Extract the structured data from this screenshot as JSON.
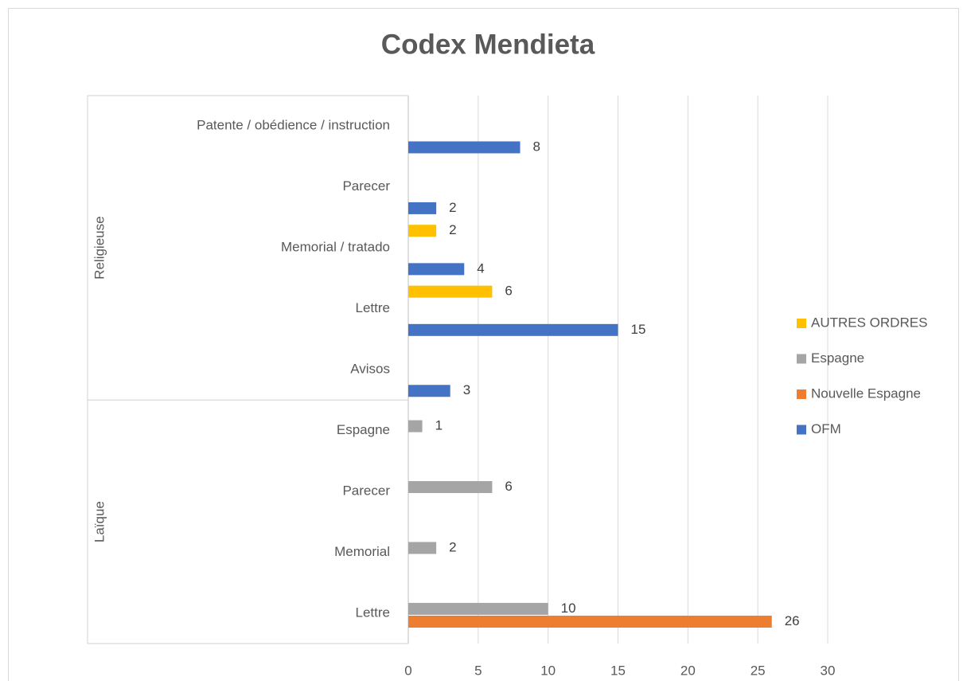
{
  "chart_data": {
    "type": "bar",
    "orientation": "horizontal",
    "title": "Codex Mendieta",
    "groups": [
      {
        "name": "Religieuse",
        "categories": [
          "Patente / obédience / instruction",
          "Parecer",
          "Memorial / tratado",
          "Lettre",
          "Avisos"
        ]
      },
      {
        "name": "Laïque",
        "categories": [
          "Espagne",
          "Parecer",
          "Memorial",
          "Lettre"
        ]
      }
    ],
    "series": [
      {
        "name": "AUTRES ORDRES",
        "color": "#ffc000",
        "values": [
          null,
          null,
          2,
          6,
          null,
          null,
          null,
          null,
          null
        ]
      },
      {
        "name": "Espagne",
        "color": "#a5a5a5",
        "values": [
          null,
          null,
          null,
          null,
          null,
          1,
          6,
          2,
          10
        ]
      },
      {
        "name": "Nouvelle Espagne",
        "color": "#ed7d31",
        "values": [
          null,
          null,
          null,
          null,
          null,
          null,
          null,
          null,
          26
        ]
      },
      {
        "name": "OFM",
        "color": "#4472c4",
        "values": [
          8,
          2,
          4,
          15,
          3,
          null,
          null,
          null,
          null
        ]
      }
    ],
    "xlim": [
      0,
      30
    ],
    "xticks": [
      0,
      5,
      10,
      15,
      20,
      25,
      30
    ],
    "grid": true,
    "legend": "right",
    "data_labels": true
  }
}
